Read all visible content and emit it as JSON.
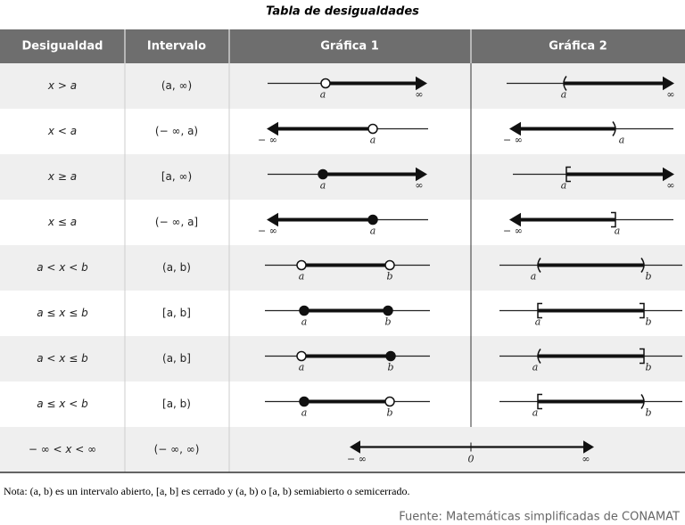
{
  "title": "Tabla de desigualdades",
  "table": {
    "headers": [
      "Desigualdad",
      "Intervalo",
      "Gráfica 1",
      "Gráfica 2"
    ],
    "rows": [
      {
        "inequality": "x > a",
        "interval": "(a, ∞)",
        "graph1": [
          "a",
          "∞"
        ],
        "graph2": [
          "a",
          "∞"
        ]
      },
      {
        "inequality": "x < a",
        "interval": "(− ∞, a)",
        "graph1": [
          "− ∞",
          "a"
        ],
        "graph2": [
          "− ∞",
          "a"
        ]
      },
      {
        "inequality": "x ≥ a",
        "interval": "[a, ∞)",
        "graph1": [
          "a",
          "∞"
        ],
        "graph2": [
          "a",
          "∞"
        ]
      },
      {
        "inequality": "x ≤ a",
        "interval": "(− ∞, a]",
        "graph1": [
          "− ∞",
          "a"
        ],
        "graph2": [
          "− ∞",
          "a"
        ]
      },
      {
        "inequality": "a < x < b",
        "interval": "(a, b)",
        "graph1": [
          "a",
          "b"
        ],
        "graph2": [
          "a",
          "b"
        ]
      },
      {
        "inequality": "a ≤ x ≤ b",
        "interval": "[a, b]",
        "graph1": [
          "a",
          "b"
        ],
        "graph2": [
          "a",
          "b"
        ]
      },
      {
        "inequality": "a < x ≤ b",
        "interval": "(a, b]",
        "graph1": [
          "a",
          "b"
        ],
        "graph2": [
          "a",
          "b"
        ]
      },
      {
        "inequality": "a ≤ x < b",
        "interval": "[a, b)",
        "graph1": [
          "a",
          "b"
        ],
        "graph2": [
          "a",
          "b"
        ]
      },
      {
        "inequality": "− ∞ < x < ∞",
        "interval": "(− ∞, ∞)",
        "graph": [
          "− ∞",
          "0",
          "∞"
        ]
      }
    ]
  },
  "note": "Nota: (a, b) es un intervalo abierto, [a, b] es cerrado y (a, b) o [a, b) semiabierto o semicerrado.",
  "source": "Fuente: Matemáticas simplificadas de CONAMAT"
}
